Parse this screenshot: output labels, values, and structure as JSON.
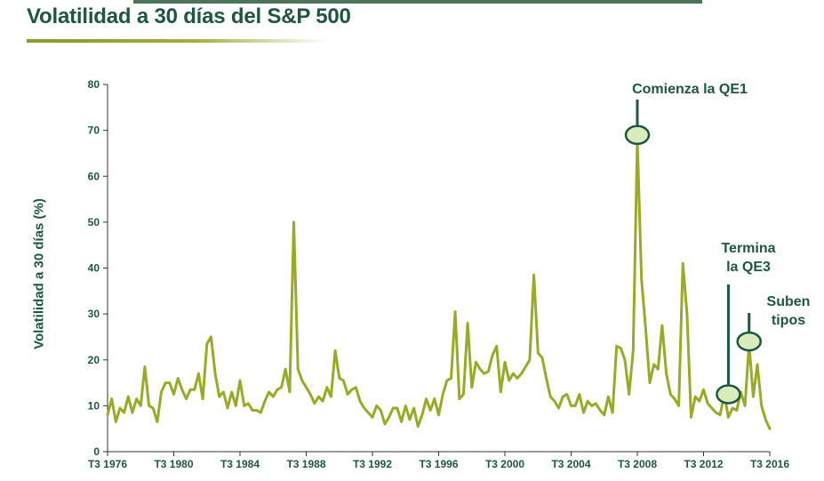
{
  "title": "Volatilidad a 30 días del S&P 500",
  "colors": {
    "line": "#9aaa26",
    "title": "#1f5640",
    "axis": "#333333",
    "marker_fill": "#d9ecbd",
    "marker_stroke": "#1f5640"
  },
  "chart_data": {
    "type": "line",
    "title": "Volatilidad a 30 días del S&P 500",
    "xlabel": "",
    "ylabel": "Volatilidad a 30 días (%)",
    "xlim": [
      1976.5,
      2016.5
    ],
    "ylim": [
      0,
      80
    ],
    "y_ticks": [
      0,
      10,
      20,
      30,
      40,
      50,
      60,
      70,
      80
    ],
    "x_ticks": [
      {
        "x": 1976.5,
        "label": "T3 1976"
      },
      {
        "x": 1980.5,
        "label": "T3 1980"
      },
      {
        "x": 1984.5,
        "label": "T3 1984"
      },
      {
        "x": 1988.5,
        "label": "T3 1988"
      },
      {
        "x": 1992.5,
        "label": "T3 1992"
      },
      {
        "x": 1996.5,
        "label": "T3 1996"
      },
      {
        "x": 2000.5,
        "label": "T3 2000"
      },
      {
        "x": 2004.5,
        "label": "T3 2004"
      },
      {
        "x": 2008.5,
        "label": "T3 2008"
      },
      {
        "x": 2012.5,
        "label": "T3 2012"
      },
      {
        "x": 2016.5,
        "label": "T3 2016"
      }
    ],
    "grid": false,
    "series": [
      {
        "points": [
          [
            1976.5,
            8
          ],
          [
            1976.75,
            11.5
          ],
          [
            1977.0,
            6.5
          ],
          [
            1977.25,
            9.5
          ],
          [
            1977.5,
            8.5
          ],
          [
            1977.75,
            12
          ],
          [
            1978.0,
            8.5
          ],
          [
            1978.25,
            11.5
          ],
          [
            1978.5,
            10
          ],
          [
            1978.75,
            18.5
          ],
          [
            1979.0,
            10
          ],
          [
            1979.25,
            9.5
          ],
          [
            1979.5,
            6.5
          ],
          [
            1979.75,
            13
          ],
          [
            1980.0,
            15
          ],
          [
            1980.25,
            15
          ],
          [
            1980.5,
            12.5
          ],
          [
            1980.75,
            16
          ],
          [
            1981.0,
            13.5
          ],
          [
            1981.25,
            11.5
          ],
          [
            1981.5,
            13.5
          ],
          [
            1981.75,
            13.5
          ],
          [
            1982.0,
            17
          ],
          [
            1982.25,
            11.5
          ],
          [
            1982.5,
            23.5
          ],
          [
            1982.75,
            25
          ],
          [
            1983.0,
            17
          ],
          [
            1983.25,
            12
          ],
          [
            1983.5,
            13
          ],
          [
            1983.75,
            9.5
          ],
          [
            1984.0,
            13
          ],
          [
            1984.25,
            10
          ],
          [
            1984.5,
            15.5
          ],
          [
            1984.75,
            10
          ],
          [
            1985.0,
            10.5
          ],
          [
            1985.25,
            9
          ],
          [
            1985.5,
            9
          ],
          [
            1985.75,
            8.5
          ],
          [
            1986.0,
            11
          ],
          [
            1986.25,
            13
          ],
          [
            1986.5,
            12
          ],
          [
            1986.75,
            13.5
          ],
          [
            1987.0,
            14
          ],
          [
            1987.25,
            18
          ],
          [
            1987.5,
            13
          ],
          [
            1987.75,
            50
          ],
          [
            1988.0,
            18
          ],
          [
            1988.25,
            15.5
          ],
          [
            1988.5,
            14
          ],
          [
            1988.75,
            12.5
          ],
          [
            1989.0,
            10.5
          ],
          [
            1989.25,
            12
          ],
          [
            1989.5,
            11
          ],
          [
            1989.75,
            14
          ],
          [
            1990.0,
            12
          ],
          [
            1990.25,
            22
          ],
          [
            1990.5,
            16
          ],
          [
            1990.75,
            15.5
          ],
          [
            1991.0,
            12.5
          ],
          [
            1991.25,
            13.5
          ],
          [
            1991.5,
            14
          ],
          [
            1991.75,
            11
          ],
          [
            1992.0,
            9.5
          ],
          [
            1992.25,
            8.5
          ],
          [
            1992.5,
            7.5
          ],
          [
            1992.75,
            10
          ],
          [
            1993.0,
            9
          ],
          [
            1993.25,
            6
          ],
          [
            1993.5,
            7.5
          ],
          [
            1993.75,
            9.5
          ],
          [
            1994.0,
            9.5
          ],
          [
            1994.25,
            6.5
          ],
          [
            1994.5,
            10
          ],
          [
            1994.75,
            7
          ],
          [
            1995.0,
            9.5
          ],
          [
            1995.25,
            5.5
          ],
          [
            1995.5,
            8
          ],
          [
            1995.75,
            11.5
          ],
          [
            1996.0,
            9
          ],
          [
            1996.25,
            11.5
          ],
          [
            1996.5,
            8
          ],
          [
            1996.75,
            12.5
          ],
          [
            1997.0,
            15.5
          ],
          [
            1997.25,
            16
          ],
          [
            1997.5,
            30.5
          ],
          [
            1997.75,
            11.5
          ],
          [
            1998.0,
            12.5
          ],
          [
            1998.25,
            28
          ],
          [
            1998.5,
            14
          ],
          [
            1998.75,
            19.5
          ],
          [
            1999.0,
            18
          ],
          [
            1999.25,
            17
          ],
          [
            1999.5,
            17.5
          ],
          [
            1999.75,
            21
          ],
          [
            2000.0,
            23
          ],
          [
            2000.25,
            13
          ],
          [
            2000.5,
            19.5
          ],
          [
            2000.75,
            15.5
          ],
          [
            2001.0,
            17
          ],
          [
            2001.25,
            16
          ],
          [
            2001.5,
            17
          ],
          [
            2001.75,
            18.5
          ],
          [
            2002.0,
            20
          ],
          [
            2002.25,
            38.5
          ],
          [
            2002.5,
            21.5
          ],
          [
            2002.75,
            20.5
          ],
          [
            2003.0,
            16
          ],
          [
            2003.25,
            12
          ],
          [
            2003.5,
            11
          ],
          [
            2003.75,
            9.5
          ],
          [
            2004.0,
            12
          ],
          [
            2004.25,
            12.5
          ],
          [
            2004.5,
            10
          ],
          [
            2004.75,
            10
          ],
          [
            2005.0,
            12.5
          ],
          [
            2005.25,
            8.5
          ],
          [
            2005.5,
            11
          ],
          [
            2005.75,
            10
          ],
          [
            2006.0,
            10.5
          ],
          [
            2006.25,
            9
          ],
          [
            2006.5,
            8
          ],
          [
            2006.75,
            12
          ],
          [
            2007.0,
            8.5
          ],
          [
            2007.25,
            23
          ],
          [
            2007.5,
            22.5
          ],
          [
            2007.75,
            20
          ],
          [
            2008.0,
            12.5
          ],
          [
            2008.25,
            22
          ],
          [
            2008.5,
            68
          ],
          [
            2008.75,
            37.5
          ],
          [
            2009.0,
            27
          ],
          [
            2009.25,
            15
          ],
          [
            2009.5,
            19
          ],
          [
            2009.75,
            18
          ],
          [
            2010.0,
            27.5
          ],
          [
            2010.25,
            17
          ],
          [
            2010.5,
            12.5
          ],
          [
            2010.75,
            11.5
          ],
          [
            2011.0,
            10
          ],
          [
            2011.25,
            41
          ],
          [
            2011.5,
            30
          ],
          [
            2011.75,
            7.5
          ],
          [
            2012.0,
            12
          ],
          [
            2012.25,
            11
          ],
          [
            2012.5,
            13.5
          ],
          [
            2012.75,
            10.5
          ],
          [
            2013.0,
            9.5
          ],
          [
            2013.25,
            8.5
          ],
          [
            2013.5,
            8
          ],
          [
            2013.75,
            12.5
          ],
          [
            2014.0,
            7.5
          ],
          [
            2014.25,
            9.5
          ],
          [
            2014.5,
            9
          ],
          [
            2014.75,
            13
          ],
          [
            2015.0,
            10
          ],
          [
            2015.25,
            23.5
          ],
          [
            2015.5,
            12
          ],
          [
            2015.75,
            19
          ],
          [
            2016.0,
            10
          ],
          [
            2016.25,
            7
          ],
          [
            2016.5,
            5
          ]
        ]
      }
    ],
    "annotations": [
      {
        "lines": [
          "Comienza la QE1"
        ],
        "point": [
          2008.5,
          69
        ]
      },
      {
        "lines": [
          "Termina",
          "la QE3"
        ],
        "point": [
          2014.0,
          12.5
        ]
      },
      {
        "lines": [
          "Suben",
          "tipos"
        ],
        "point": [
          2015.25,
          24
        ]
      }
    ]
  }
}
